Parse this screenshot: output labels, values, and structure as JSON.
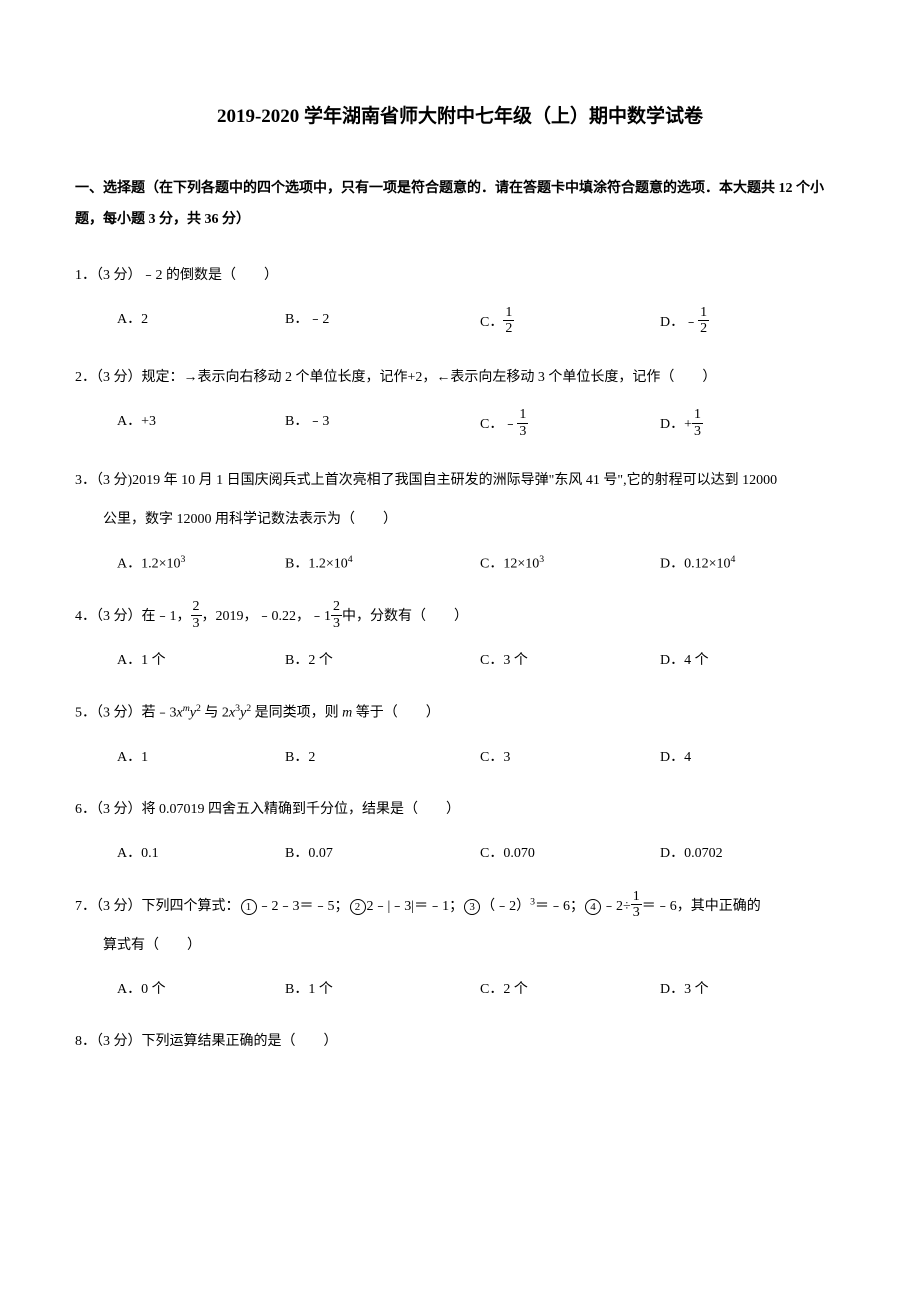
{
  "title": "2019-2020 学年湖南省师大附中七年级（上）期中数学试卷",
  "section_header": "一、选择题（在下列各题中的四个选项中，只有一项是符合题意的．请在答题卡中填涂符合题意的选项．本大题共 12 个小题，每小题 3 分，共 36 分）",
  "q1": {
    "stem": "1．（3 分）﹣2 的倒数是（　　）",
    "a": "A．2",
    "b": "B．﹣2",
    "c_prefix": "C．",
    "d_prefix": "D．﹣"
  },
  "q2": {
    "stem": "2．（3 分）规定：→表示向右移动 2 个单位长度，记作+2，←表示向左移动 3 个单位长度，记作（　　）",
    "a": "A．+3",
    "b": "B．﹣3",
    "c_prefix": "C．﹣",
    "d_prefix": "D．+"
  },
  "q3": {
    "stem": "3．（3 分)2019 年 10 月 1 日国庆阅兵式上首次亮相了我国自主研发的洲际导弹\"东风 41 号\",它的射程可以达到 12000",
    "stem2": "公里，数字 12000 用科学记数法表示为（　　）",
    "a": "A．1.2×10",
    "a_sup": "3",
    "b": "B．1.2×10",
    "b_sup": "4",
    "c": "C．12×10",
    "c_sup": "3",
    "d": "D．0.12×10",
    "d_sup": "4"
  },
  "q4": {
    "stem_prefix": "4．（3 分）在﹣1，",
    "stem_mid1": "，2019，﹣0.22，﹣1",
    "stem_suffix": "中，分数有（　　）",
    "a": "A．1 个",
    "b": "B．2 个",
    "c": "C．3 个",
    "d": "D．4 个"
  },
  "q5": {
    "stem_prefix": "5．（3 分）若﹣3",
    "stem_mid": " 与 2",
    "stem_suffix": " 是同类项，则 ",
    "stem_end": " 等于（　　）",
    "x": "x",
    "m": "m",
    "y": "y",
    "sup2": "2",
    "sup3": "3",
    "a": "A．1",
    "b": "B．2",
    "c": "C．3",
    "d": "D．4"
  },
  "q6": {
    "stem": "6．（3 分）将 0.07019 四舍五入精确到千分位，结果是（　　）",
    "a": "A．0.1",
    "b": "B．0.07",
    "c": "C．0.070",
    "d": "D．0.0702"
  },
  "q7": {
    "stem_prefix": "7．（3 分）下列四个算式：",
    "c1": "1",
    "p1": "﹣2﹣3＝﹣5；",
    "c2": "2",
    "p2": "2﹣|﹣3|＝﹣1；",
    "c3": "3",
    "p3_pre": "（﹣2）",
    "p3_sup": "3",
    "p3_post": "＝﹣6；",
    "c4": "4",
    "p4_pre": "﹣2÷",
    "p4_post": "＝﹣6，其中正确的",
    "stem2": "算式有（　　）",
    "a": "A．0 个",
    "b": "B．1 个",
    "c": "C．2 个",
    "d": "D．3 个"
  },
  "q8": {
    "stem": "8．（3 分）下列运算结果正确的是（　　）"
  },
  "frac_1_2": {
    "num": "1",
    "den": "2"
  },
  "frac_1_3": {
    "num": "1",
    "den": "3"
  },
  "frac_2_3": {
    "num": "2",
    "den": "3"
  }
}
